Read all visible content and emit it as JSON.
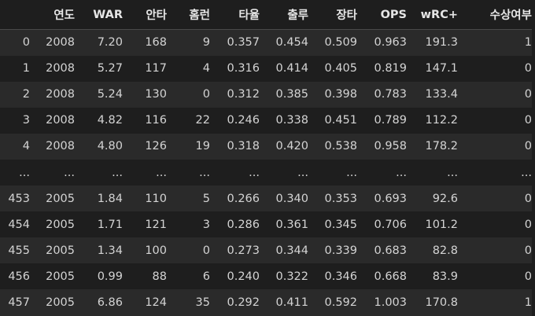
{
  "columns": [
    "",
    "연도",
    "WAR",
    "안타",
    "홈런",
    "타율",
    "출루",
    "장타",
    "OPS",
    "wRC+",
    "수상여부"
  ],
  "rows": [
    [
      "0",
      "2008",
      "7.20",
      "168",
      "9",
      "0.357",
      "0.454",
      "0.509",
      "0.963",
      "191.3",
      "1"
    ],
    [
      "1",
      "2008",
      "5.27",
      "117",
      "4",
      "0.316",
      "0.414",
      "0.405",
      "0.819",
      "147.1",
      "0"
    ],
    [
      "2",
      "2008",
      "5.24",
      "130",
      "0",
      "0.312",
      "0.385",
      "0.398",
      "0.783",
      "133.4",
      "0"
    ],
    [
      "3",
      "2008",
      "4.82",
      "116",
      "22",
      "0.246",
      "0.338",
      "0.451",
      "0.789",
      "112.2",
      "0"
    ],
    [
      "4",
      "2008",
      "4.80",
      "126",
      "19",
      "0.318",
      "0.420",
      "0.538",
      "0.958",
      "178.2",
      "0"
    ],
    [
      "...",
      "...",
      "...",
      "...",
      "...",
      "...",
      "...",
      "...",
      "...",
      "...",
      "..."
    ],
    [
      "453",
      "2005",
      "1.84",
      "110",
      "5",
      "0.266",
      "0.340",
      "0.353",
      "0.693",
      "92.6",
      "0"
    ],
    [
      "454",
      "2005",
      "1.71",
      "121",
      "3",
      "0.286",
      "0.361",
      "0.345",
      "0.706",
      "101.2",
      "0"
    ],
    [
      "455",
      "2005",
      "1.34",
      "100",
      "0",
      "0.273",
      "0.344",
      "0.339",
      "0.683",
      "82.8",
      "0"
    ],
    [
      "456",
      "2005",
      "0.99",
      "88",
      "6",
      "0.240",
      "0.322",
      "0.346",
      "0.668",
      "83.9",
      "0"
    ],
    [
      "457",
      "2005",
      "6.86",
      "124",
      "35",
      "0.292",
      "0.411",
      "0.592",
      "1.003",
      "170.8",
      "1"
    ]
  ]
}
